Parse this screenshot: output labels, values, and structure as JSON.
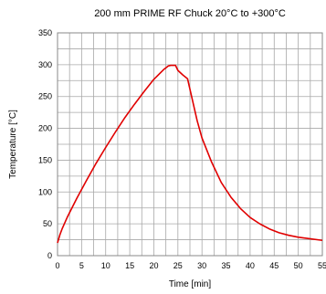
{
  "chart_data": {
    "type": "line",
    "title": "200 mm PRIME RF Chuck 20°C to +300°C",
    "xlabel": "Time [min]",
    "ylabel": "Temperature [°C]",
    "xlim": [
      0,
      55
    ],
    "ylim": [
      0,
      350
    ],
    "xticks": [
      0,
      5,
      10,
      15,
      20,
      25,
      30,
      35,
      40,
      45,
      50,
      55
    ],
    "yticks": [
      0,
      50,
      100,
      150,
      200,
      250,
      300,
      350
    ],
    "grid": true,
    "legend": "none",
    "series": [
      {
        "color": "#e00000",
        "x": [
          0,
          0.5,
          1,
          2,
          4,
          6,
          8,
          10,
          12,
          14,
          16,
          18,
          20,
          22,
          23,
          23.5,
          24.5,
          25,
          26,
          27,
          28,
          29,
          30,
          32,
          34,
          36,
          38,
          40,
          42,
          44,
          46,
          48,
          50,
          52,
          55
        ],
        "y": [
          20,
          33,
          43,
          60,
          90,
          118,
          145,
          170,
          194,
          217,
          238,
          258,
          277,
          292,
          298,
          299,
          299,
          291,
          284,
          278,
          245,
          212,
          185,
          147,
          115,
          92,
          74,
          60,
          50,
          42,
          36,
          32,
          29,
          27,
          24
        ]
      }
    ]
  }
}
